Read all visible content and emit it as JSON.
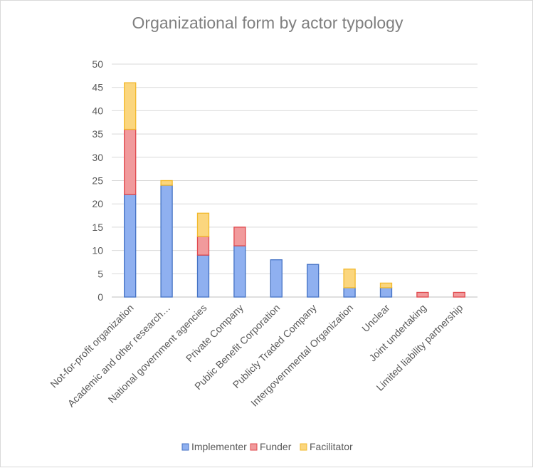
{
  "chart_data": {
    "type": "bar",
    "stacked": true,
    "title": "Organizational form by actor typology",
    "xlabel": "",
    "ylabel": "",
    "ylim": [
      0,
      50
    ],
    "yticks": [
      0,
      5,
      10,
      15,
      20,
      25,
      30,
      35,
      40,
      45,
      50
    ],
    "grid": true,
    "legend_position": "bottom",
    "categories": [
      "Not-for-profit organization",
      "Academic and other research…",
      "National government agencies",
      "Private Company",
      "Public Benefit Corporation",
      "Publicly Traded Company",
      "Intergovernmental Organization",
      "Unclear",
      "Joint undertaking",
      "Limited liability partnership"
    ],
    "series": [
      {
        "name": "Implementer",
        "values": [
          22,
          24,
          9,
          11,
          8,
          7,
          2,
          2,
          0,
          0
        ],
        "color": "#8fb0f0",
        "stroke": "#4472c4"
      },
      {
        "name": "Funder",
        "values": [
          14,
          0,
          4,
          4,
          0,
          0,
          0,
          0,
          1,
          1
        ],
        "color": "#f19a9c",
        "stroke": "#e0484c"
      },
      {
        "name": "Facilitator",
        "values": [
          10,
          1,
          5,
          0,
          0,
          0,
          4,
          1,
          0,
          0
        ],
        "color": "#fbd67e",
        "stroke": "#f2b92c"
      }
    ]
  }
}
